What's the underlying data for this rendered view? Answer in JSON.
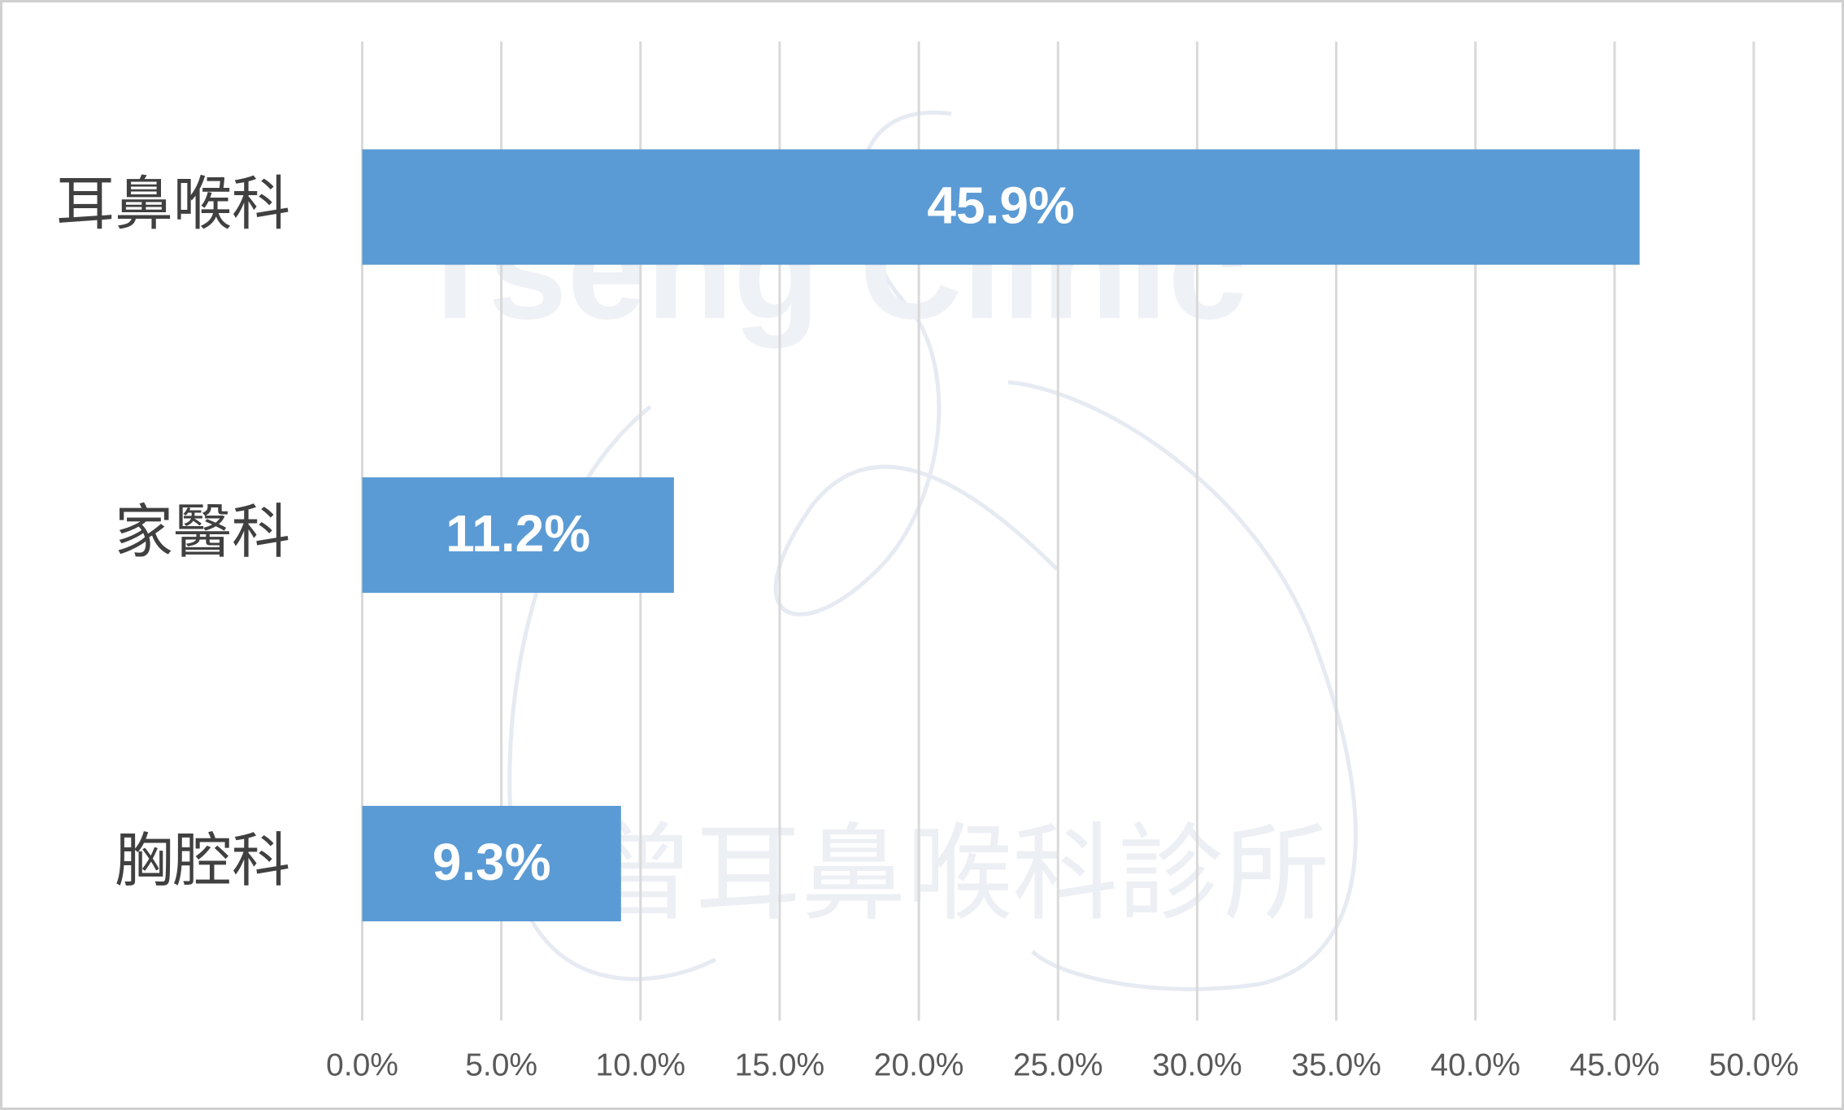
{
  "chart_data": {
    "type": "bar",
    "orientation": "horizontal",
    "categories": [
      "耳鼻喉科",
      "家醫科",
      "胸腔科"
    ],
    "values": [
      45.9,
      11.2,
      9.3
    ],
    "value_labels": [
      "45.9%",
      "11.2%",
      "9.3%"
    ],
    "color": "#5b9bd5",
    "xlim": [
      0,
      50
    ],
    "xticks": [
      {
        "value": 0,
        "label": "0.0%"
      },
      {
        "value": 5,
        "label": "5.0%"
      },
      {
        "value": 10,
        "label": "10.0%"
      },
      {
        "value": 15,
        "label": "15.0%"
      },
      {
        "value": 20,
        "label": "20.0%"
      },
      {
        "value": 25,
        "label": "25.0%"
      },
      {
        "value": 30,
        "label": "30.0%"
      },
      {
        "value": 35,
        "label": "35.0%"
      },
      {
        "value": 40,
        "label": "40.0%"
      },
      {
        "value": 45,
        "label": "45.0%"
      },
      {
        "value": 50,
        "label": "50.0%"
      }
    ],
    "grid": true,
    "watermark": [
      "Tseng Clinic",
      "曾耳鼻喉科診所"
    ]
  }
}
